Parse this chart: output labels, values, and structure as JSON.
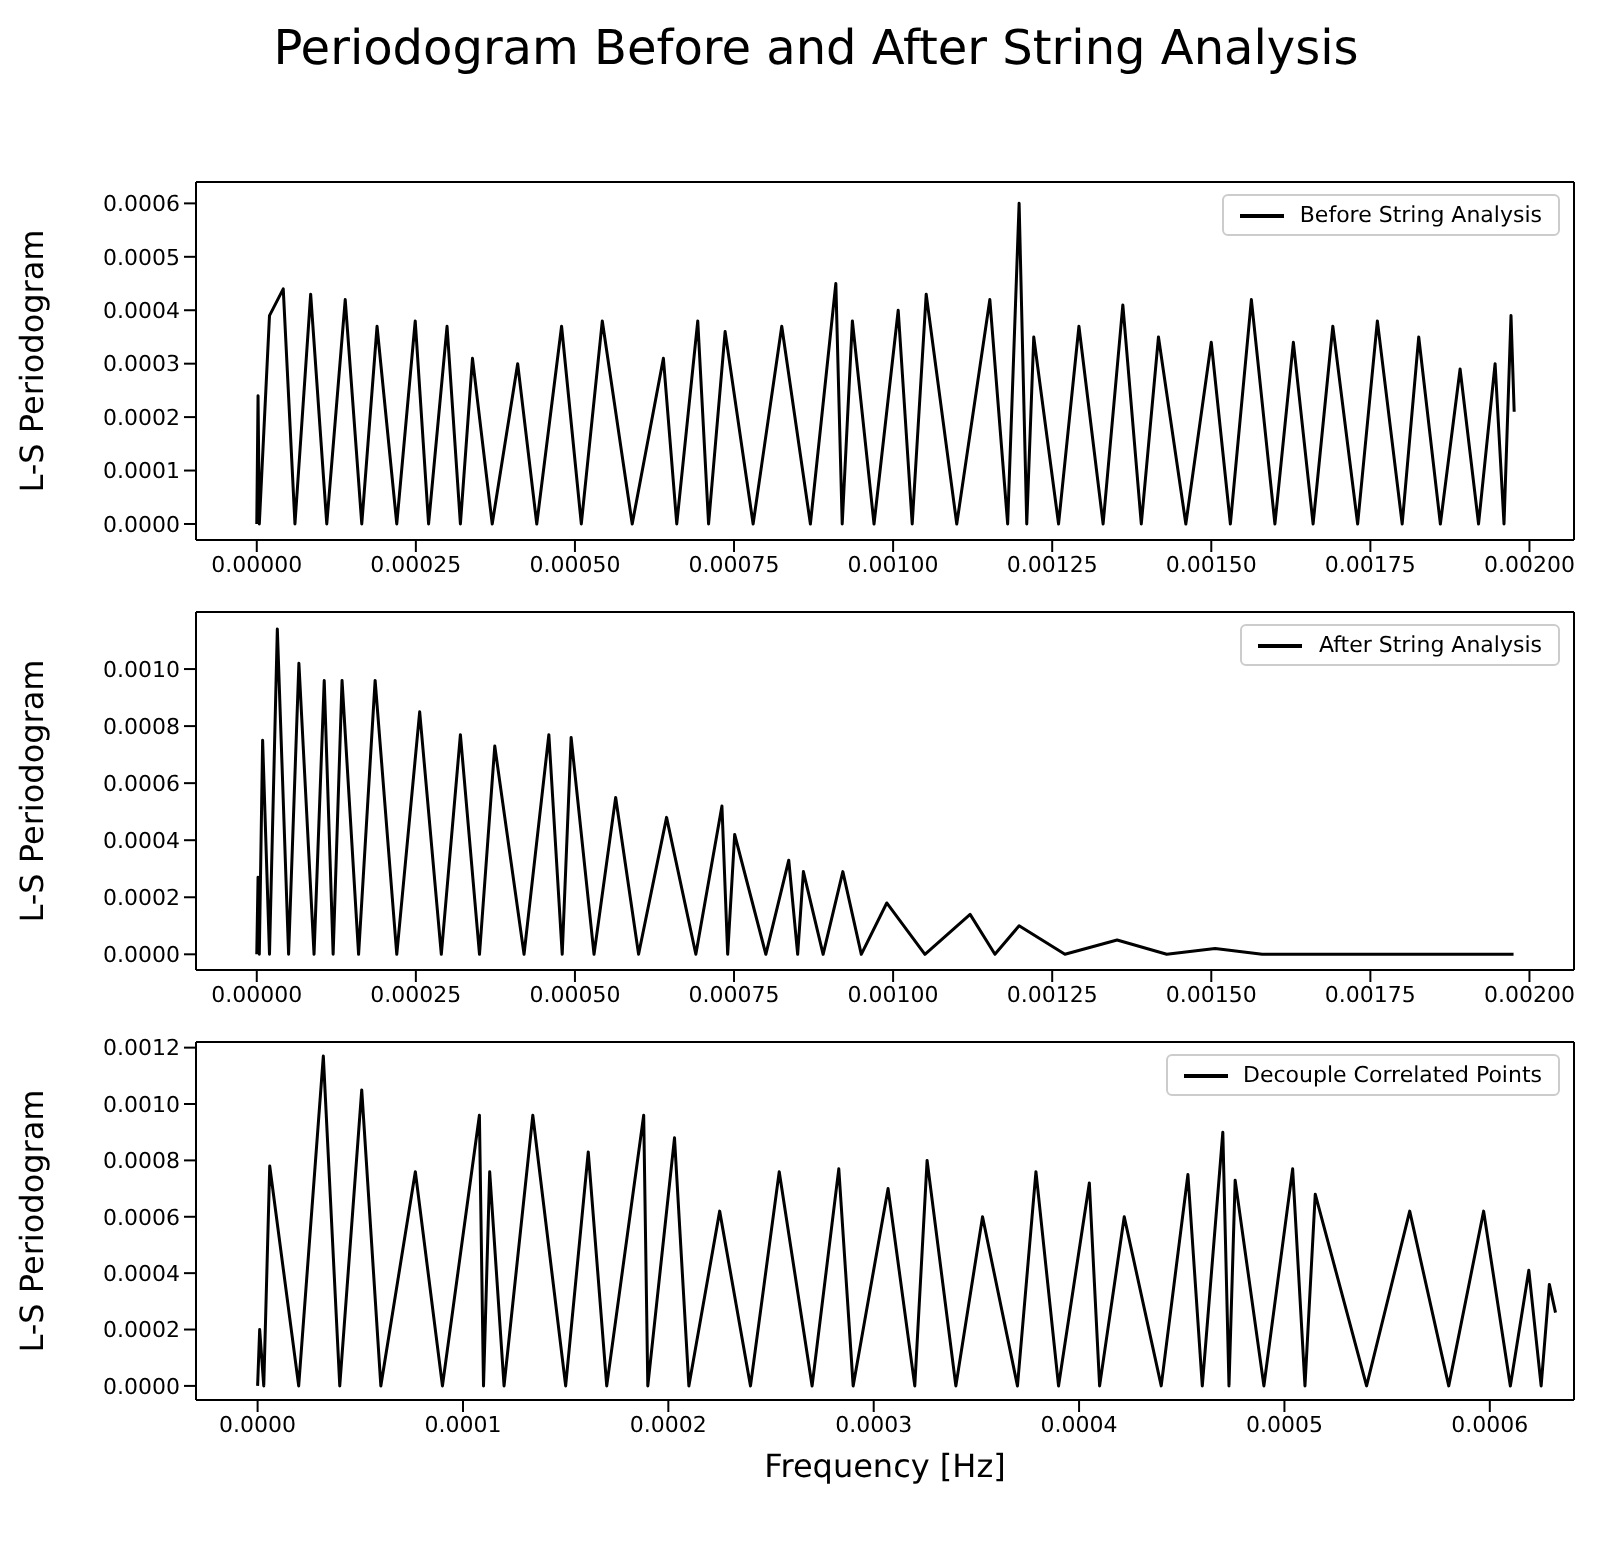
{
  "chart_data": [
    {
      "type": "line",
      "title": "Periodogram Before and After String Analysis",
      "ylabel": "L-S Periodogram",
      "legend": "top right",
      "marker": "none",
      "line_style": "solid",
      "xlim": [
        -9.55e-05,
        0.00207
      ],
      "ylim": [
        -3e-05,
        0.00064
      ],
      "xticks": [
        {
          "value": 0,
          "label": "0.00000"
        },
        {
          "value": 0.00025,
          "label": "0.00025"
        },
        {
          "value": 0.0005,
          "label": "0.00050"
        },
        {
          "value": 0.00075,
          "label": "0.00075"
        },
        {
          "value": 0.001,
          "label": "0.00100"
        },
        {
          "value": 0.00125,
          "label": "0.00125"
        },
        {
          "value": 0.0015,
          "label": "0.00150"
        },
        {
          "value": 0.00175,
          "label": "0.00175"
        },
        {
          "value": 0.002,
          "label": "0.00200"
        }
      ],
      "yticks": [
        {
          "value": 0,
          "label": "0.0000"
        },
        {
          "value": 0.0001,
          "label": "0.0001"
        },
        {
          "value": 0.0002,
          "label": "0.0002"
        },
        {
          "value": 0.0003,
          "label": "0.0003"
        },
        {
          "value": 0.0004,
          "label": "0.0004"
        },
        {
          "value": 0.0005,
          "label": "0.0005"
        },
        {
          "value": 0.0006,
          "label": "0.0006"
        }
      ],
      "series": [
        {
          "name": "Before String Analysis",
          "color": "#000000",
          "x": [
            0,
            2e-06,
            4e-06,
            2e-05,
            4.16e-05,
            6e-05,
            8.47e-05,
            0.00011,
            0.000139,
            0.000165,
            0.000189,
            0.00022,
            0.000249,
            0.00027,
            0.000299,
            0.00032,
            0.000339,
            0.00037,
            0.00041,
            0.00044,
            0.000479,
            0.00051,
            0.000543,
            0.00059,
            0.000639,
            0.00066,
            0.000693,
            0.00071,
            0.000736,
            0.00078,
            0.000825,
            0.00087,
            0.00091,
            0.00092,
            0.000936,
            0.00097,
            0.001008,
            0.00103,
            0.001052,
            0.0011,
            0.001152,
            0.00118,
            0.001198,
            0.00121,
            0.001221,
            0.00126,
            0.001292,
            0.00133,
            0.001361,
            0.00139,
            0.001417,
            0.00146,
            0.0015,
            0.00153,
            0.001563,
            0.0016,
            0.001629,
            0.00166,
            0.001691,
            0.00173,
            0.001761,
            0.0018,
            0.001826,
            0.00186,
            0.001891,
            0.00192,
            0.001946,
            0.00196,
            0.001971,
            0.001976
          ],
          "values": [
            0,
            0.00024,
            0,
            0.00039,
            0.00044,
            0,
            0.00043,
            0,
            0.00042,
            0,
            0.00037,
            0,
            0.00038,
            0,
            0.00037,
            0,
            0.00031,
            0,
            0.0003,
            0,
            0.00037,
            0,
            0.00038,
            0,
            0.00031,
            0,
            0.00038,
            0,
            0.00036,
            0,
            0.00037,
            0,
            0.00045,
            0,
            0.00038,
            0,
            0.0004,
            0,
            0.00043,
            0,
            0.00042,
            0,
            0.0006,
            0,
            0.00035,
            0,
            0.00037,
            0,
            0.00041,
            0,
            0.00035,
            0,
            0.00034,
            0,
            0.00042,
            0,
            0.00034,
            0,
            0.00037,
            0,
            0.00038,
            0,
            0.00035,
            0,
            0.00029,
            0,
            0.0003,
            0,
            0.00039,
            0.00021
          ]
        }
      ]
    },
    {
      "type": "line",
      "ylabel": "L-S Periodogram",
      "legend": "top right",
      "marker": "none",
      "line_style": "solid",
      "xlim": [
        -9.55e-05,
        0.00207
      ],
      "ylim": [
        -5.5e-05,
        0.0012
      ],
      "xticks": [
        {
          "value": 0,
          "label": "0.00000"
        },
        {
          "value": 0.00025,
          "label": "0.00025"
        },
        {
          "value": 0.0005,
          "label": "0.00050"
        },
        {
          "value": 0.00075,
          "label": "0.00075"
        },
        {
          "value": 0.001,
          "label": "0.00100"
        },
        {
          "value": 0.00125,
          "label": "0.00125"
        },
        {
          "value": 0.0015,
          "label": "0.00150"
        },
        {
          "value": 0.00175,
          "label": "0.00175"
        },
        {
          "value": 0.002,
          "label": "0.00200"
        }
      ],
      "yticks": [
        {
          "value": 0,
          "label": "0.0000"
        },
        {
          "value": 0.0002,
          "label": "0.0002"
        },
        {
          "value": 0.0004,
          "label": "0.0004"
        },
        {
          "value": 0.0006,
          "label": "0.0006"
        },
        {
          "value": 0.0008,
          "label": "0.0008"
        },
        {
          "value": 0.001,
          "label": "0.0010"
        }
      ],
      "series": [
        {
          "name": "After String Analysis",
          "color": "#000000",
          "x": [
            0,
            2e-06,
            4e-06,
            9.2e-06,
            2e-05,
            3.23e-05,
            5e-05,
            6.62e-05,
            9e-05,
            0.000106,
            0.00012,
            0.000134,
            0.00016,
            0.000186,
            0.00022,
            0.000256,
            0.00029,
            0.00032,
            0.00035,
            0.000374,
            0.00042,
            0.000459,
            0.00048,
            0.000494,
            0.00053,
            0.000564,
            0.0006,
            0.000644,
            0.00069,
            0.000731,
            0.00074,
            0.000751,
            0.0008,
            0.000836,
            0.00085,
            0.000859,
            0.00089,
            0.000921,
            0.00095,
            0.00099,
            0.00105,
            0.001121,
            0.00116,
            0.001198,
            0.00127,
            0.001352,
            0.00143,
            0.001506,
            0.00158,
            0.00166,
            0.00175,
            0.001975
          ],
          "values": [
            0,
            0.00027,
            0,
            0.00075,
            0,
            0.00114,
            0,
            0.00102,
            0,
            0.00096,
            0,
            0.00096,
            0,
            0.00096,
            0,
            0.00085,
            0,
            0.00077,
            0,
            0.00073,
            0,
            0.00077,
            0,
            0.00076,
            0,
            0.00055,
            0,
            0.00048,
            0,
            0.00052,
            0,
            0.00042,
            0,
            0.00033,
            0,
            0.00029,
            0,
            0.00029,
            0,
            0.00018,
            0,
            0.00014,
            0,
            0.0001,
            0,
            5e-05,
            0,
            2e-05,
            0,
            0,
            0,
            0
          ]
        }
      ]
    },
    {
      "type": "line",
      "ylabel": "L-S Periodogram",
      "xlabel": "Frequency [Hz]",
      "legend": "top right",
      "marker": "none",
      "line_style": "solid",
      "xlim": [
        -3e-05,
        0.000641
      ],
      "ylim": [
        -5e-05,
        0.00122
      ],
      "xticks": [
        {
          "value": 0,
          "label": "0.0000"
        },
        {
          "value": 0.0001,
          "label": "0.0001"
        },
        {
          "value": 0.0002,
          "label": "0.0002"
        },
        {
          "value": 0.0003,
          "label": "0.0003"
        },
        {
          "value": 0.0004,
          "label": "0.0004"
        },
        {
          "value": 0.0005,
          "label": "0.0005"
        },
        {
          "value": 0.0006,
          "label": "0.0006"
        }
      ],
      "yticks": [
        {
          "value": 0,
          "label": "0.0000"
        },
        {
          "value": 0.0002,
          "label": "0.0002"
        },
        {
          "value": 0.0004,
          "label": "0.0004"
        },
        {
          "value": 0.0006,
          "label": "0.0006"
        },
        {
          "value": 0.0008,
          "label": "0.0008"
        },
        {
          "value": 0.001,
          "label": "0.0010"
        },
        {
          "value": 0.0012,
          "label": "0.0012"
        }
      ],
      "series": [
        {
          "name": "Decouple Correlated Points",
          "color": "#000000",
          "x": [
            0,
            1e-06,
            3e-06,
            5.9e-06,
            2e-05,
            3.2e-05,
            4e-05,
            5.07e-05,
            6e-05,
            7.68e-05,
            9e-05,
            0.000108,
            0.00011,
            0.000113,
            0.00012,
            0.000134,
            0.00015,
            0.000161,
            0.00017,
            0.000188,
            0.00019,
            0.000203,
            0.00021,
            0.000225,
            0.00024,
            0.000254,
            0.00027,
            0.000283,
            0.00029,
            0.000307,
            0.00032,
            0.000326,
            0.00034,
            0.000353,
            0.00037,
            0.000379,
            0.00039,
            0.000405,
            0.00041,
            0.000422,
            0.00044,
            0.000453,
            0.00046,
            0.00047,
            0.000473,
            0.000476,
            0.00049,
            0.000504,
            0.00051,
            0.000515,
            0.00054,
            0.000561,
            0.00058,
            0.000597,
            0.00061,
            0.000619,
            0.000625,
            0.000629,
            0.000632
          ],
          "values": [
            0,
            0.0002,
            0,
            0.00078,
            0,
            0.00117,
            0,
            0.00105,
            0,
            0.00076,
            0,
            0.00096,
            0,
            0.00076,
            0,
            0.00096,
            0,
            0.00083,
            0,
            0.00096,
            0,
            0.00088,
            0,
            0.00062,
            0,
            0.00076,
            0,
            0.00077,
            0,
            0.0007,
            0,
            0.0008,
            0,
            0.0006,
            0,
            0.00076,
            0,
            0.00072,
            0,
            0.0006,
            0,
            0.00075,
            0,
            0.0009,
            0,
            0.00073,
            0,
            0.00077,
            0,
            0.00068,
            0,
            0.00062,
            0,
            0.00062,
            0,
            0.00041,
            0,
            0.00036,
            0.00026
          ]
        }
      ]
    }
  ]
}
